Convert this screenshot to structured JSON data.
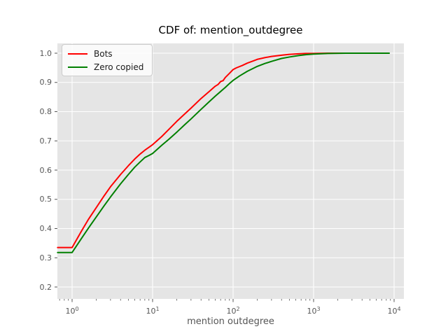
{
  "chart_data": {
    "type": "line",
    "title": "CDF of: mention_outdegree",
    "xlabel": "mention outdegree",
    "ylabel": "",
    "x_scale": "log",
    "xlim": [
      0.66,
      13000
    ],
    "ylim": [
      0.158,
      1.034
    ],
    "grid": true,
    "legend_position": "upper left",
    "plot_bg_color": "#e5e5e5",
    "grid_color": "#ffffff",
    "tick_color": "#555555",
    "x_ticks": [
      {
        "value": 1,
        "base": "10",
        "exponent": "0"
      },
      {
        "value": 10,
        "base": "10",
        "exponent": "1"
      },
      {
        "value": 100,
        "base": "10",
        "exponent": "2"
      },
      {
        "value": 1000,
        "base": "10",
        "exponent": "3"
      },
      {
        "value": 10000,
        "base": "10",
        "exponent": "4"
      }
    ],
    "y_ticks": [
      {
        "value": 1.0,
        "label": "1.0"
      },
      {
        "value": 0.9,
        "label": "0.9"
      },
      {
        "value": 0.8,
        "label": "0.8"
      },
      {
        "value": 0.7,
        "label": "0.7"
      },
      {
        "value": 0.6,
        "label": "0.6"
      },
      {
        "value": 0.5,
        "label": "0.5"
      },
      {
        "value": 0.4,
        "label": "0.4"
      },
      {
        "value": 0.3,
        "label": "0.3"
      },
      {
        "value": 0.2,
        "label": "0.2"
      }
    ],
    "series": [
      {
        "name": "Bots",
        "color": "#ff0000",
        "points": [
          [
            0.66,
            0.335
          ],
          [
            1,
            0.335
          ],
          [
            1.3,
            0.39
          ],
          [
            1.6,
            0.432
          ],
          [
            2,
            0.472
          ],
          [
            2.5,
            0.512
          ],
          [
            3,
            0.543
          ],
          [
            4,
            0.585
          ],
          [
            5,
            0.615
          ],
          [
            6,
            0.638
          ],
          [
            7,
            0.655
          ],
          [
            8,
            0.668
          ],
          [
            9,
            0.678
          ],
          [
            10,
            0.687
          ],
          [
            13,
            0.715
          ],
          [
            16,
            0.74
          ],
          [
            20,
            0.767
          ],
          [
            25,
            0.792
          ],
          [
            30,
            0.812
          ],
          [
            40,
            0.845
          ],
          [
            50,
            0.868
          ],
          [
            60,
            0.887
          ],
          [
            65,
            0.893
          ],
          [
            70,
            0.903
          ],
          [
            75,
            0.906
          ],
          [
            80,
            0.917
          ],
          [
            90,
            0.931
          ],
          [
            100,
            0.944
          ],
          [
            110,
            0.95
          ],
          [
            130,
            0.958
          ],
          [
            150,
            0.966
          ],
          [
            180,
            0.974
          ],
          [
            200,
            0.979
          ],
          [
            250,
            0.985
          ],
          [
            300,
            0.989
          ],
          [
            400,
            0.993
          ],
          [
            500,
            0.996
          ],
          [
            650,
            0.998
          ],
          [
            800,
            0.999
          ],
          [
            1000,
            0.999
          ],
          [
            1500,
            1.0
          ],
          [
            2500,
            1.0
          ]
        ]
      },
      {
        "name": "Zero copied",
        "color": "#008000",
        "points": [
          [
            0.66,
            0.318
          ],
          [
            1,
            0.318
          ],
          [
            1.3,
            0.365
          ],
          [
            1.6,
            0.402
          ],
          [
            2,
            0.44
          ],
          [
            2.5,
            0.478
          ],
          [
            3,
            0.508
          ],
          [
            4,
            0.553
          ],
          [
            5,
            0.585
          ],
          [
            6,
            0.61
          ],
          [
            7,
            0.628
          ],
          [
            8,
            0.643
          ],
          [
            9,
            0.65
          ],
          [
            10,
            0.657
          ],
          [
            13,
            0.685
          ],
          [
            16,
            0.706
          ],
          [
            20,
            0.73
          ],
          [
            25,
            0.755
          ],
          [
            30,
            0.775
          ],
          [
            40,
            0.808
          ],
          [
            50,
            0.833
          ],
          [
            60,
            0.853
          ],
          [
            70,
            0.869
          ],
          [
            80,
            0.883
          ],
          [
            90,
            0.896
          ],
          [
            100,
            0.907
          ],
          [
            120,
            0.922
          ],
          [
            150,
            0.938
          ],
          [
            200,
            0.955
          ],
          [
            250,
            0.965
          ],
          [
            300,
            0.972
          ],
          [
            400,
            0.982
          ],
          [
            500,
            0.987
          ],
          [
            650,
            0.992
          ],
          [
            800,
            0.995
          ],
          [
            1000,
            0.997
          ],
          [
            1500,
            0.999
          ],
          [
            2500,
            1.0
          ],
          [
            5000,
            1.0
          ],
          [
            8700,
            1.0
          ]
        ]
      }
    ]
  }
}
